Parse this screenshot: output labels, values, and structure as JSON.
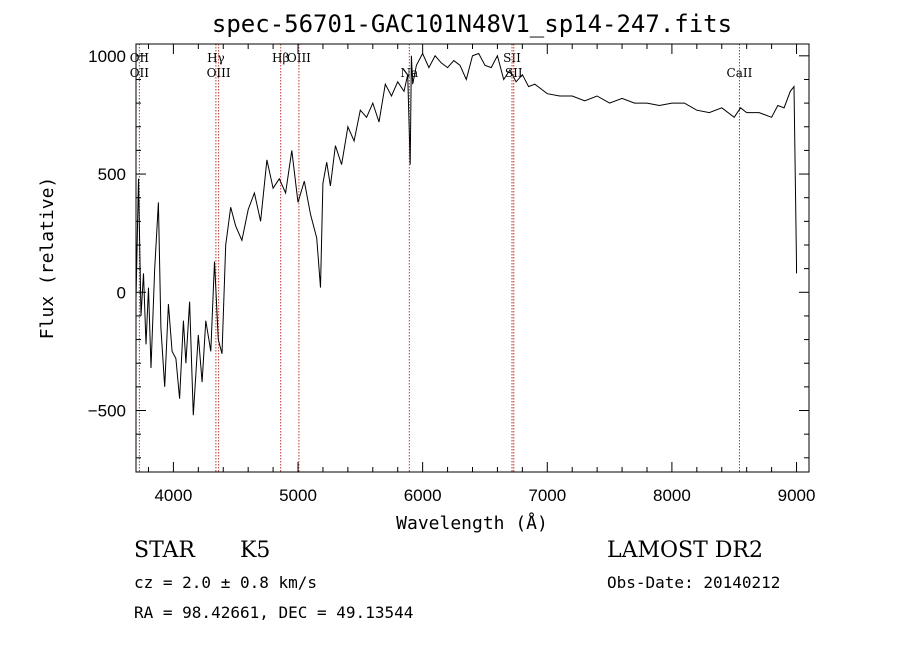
{
  "chart_data": {
    "type": "line",
    "title": "spec-56701-GAC101N48V1_sp14-247.fits",
    "xlabel": "Wavelength (Å)",
    "ylabel": "Flux (relative)",
    "xlim": [
      3700,
      9100
    ],
    "ylim": [
      -760,
      1050
    ],
    "x_ticks": [
      4000,
      5000,
      6000,
      7000,
      8000,
      9000
    ],
    "x_tick_labels": [
      "4000",
      "5000",
      "6000",
      "7000",
      "8000",
      "9000"
    ],
    "y_ticks": [
      -500,
      0,
      500,
      1000
    ],
    "y_tick_labels": [
      "−500",
      "0",
      "500",
      "1000"
    ],
    "grid": false,
    "line_color": "#000000",
    "series": [
      {
        "x": [
          3700,
          3720,
          3740,
          3760,
          3780,
          3800,
          3820,
          3850,
          3880,
          3900,
          3930,
          3960,
          3990,
          4020,
          4050,
          4080,
          4100,
          4130,
          4160,
          4200,
          4230,
          4260,
          4300,
          4330,
          4360,
          4390,
          4420,
          4460,
          4500,
          4550,
          4600,
          4650,
          4700,
          4750,
          4800,
          4850,
          4900,
          4950,
          5000,
          5050,
          5100,
          5150,
          5180,
          5200,
          5230,
          5260,
          5300,
          5350,
          5400,
          5450,
          5500,
          5550,
          5600,
          5650,
          5700,
          5750,
          5800,
          5850,
          5880,
          5900,
          5910,
          5920,
          5950,
          6000,
          6050,
          6100,
          6150,
          6200,
          6250,
          6300,
          6350,
          6400,
          6450,
          6500,
          6550,
          6600,
          6650,
          6700,
          6750,
          6800,
          6850,
          6900,
          6950,
          7000,
          7100,
          7200,
          7300,
          7400,
          7500,
          7600,
          7700,
          7800,
          7900,
          8000,
          8100,
          8200,
          8300,
          8400,
          8500,
          8550,
          8600,
          8700,
          8800,
          8850,
          8900,
          8950,
          8980,
          9000,
          9000
        ],
        "y": [
          -30,
          480,
          -100,
          80,
          -220,
          20,
          -320,
          100,
          380,
          -150,
          -400,
          -50,
          -250,
          -280,
          -450,
          -120,
          -300,
          -40,
          -520,
          -180,
          -380,
          -120,
          -250,
          130,
          -200,
          -260,
          200,
          360,
          280,
          220,
          350,
          420,
          300,
          560,
          440,
          480,
          420,
          600,
          380,
          470,
          330,
          230,
          20,
          460,
          550,
          450,
          620,
          540,
          700,
          640,
          770,
          740,
          800,
          720,
          880,
          830,
          890,
          850,
          920,
          540,
          1000,
          880,
          960,
          1010,
          950,
          1000,
          970,
          950,
          980,
          960,
          900,
          1000,
          1010,
          960,
          950,
          1000,
          900,
          940,
          890,
          920,
          870,
          880,
          860,
          840,
          830,
          830,
          810,
          830,
          800,
          820,
          800,
          800,
          790,
          800,
          800,
          770,
          760,
          780,
          740,
          780,
          760,
          760,
          740,
          790,
          780,
          850,
          870,
          120,
          80
        ],
        "values_note": ""
      }
    ],
    "lines": [
      {
        "x": 3727,
        "label_top": "OII",
        "label_bottom": "OII"
      },
      {
        "x": 4341,
        "label_top": "Hγ",
        "label_bottom": ""
      },
      {
        "x": 4363,
        "label_top": "",
        "label_bottom": "OIII"
      },
      {
        "x": 4861,
        "label_top": "Hβ",
        "label_bottom": ""
      },
      {
        "x": 5007,
        "label_top": "OIII",
        "label_bottom": ""
      },
      {
        "x": 5893,
        "label_top": "",
        "label_bottom": "Na"
      },
      {
        "x": 6717,
        "label_top": "SII",
        "label_bottom": ""
      },
      {
        "x": 6731,
        "label_top": "",
        "label_bottom": "SII"
      },
      {
        "x": 8542,
        "label_top": "",
        "label_bottom": "CaII"
      }
    ],
    "line_marker_color": "#c0392b"
  },
  "info": {
    "class": "STAR",
    "subclass": "K5",
    "cz": "cz = 2.0 ± 0.8 km/s",
    "coords": "RA =  98.42661, DEC =  49.13544",
    "survey": "LAMOST DR2",
    "obs_date": "Obs-Date: 20140212"
  }
}
